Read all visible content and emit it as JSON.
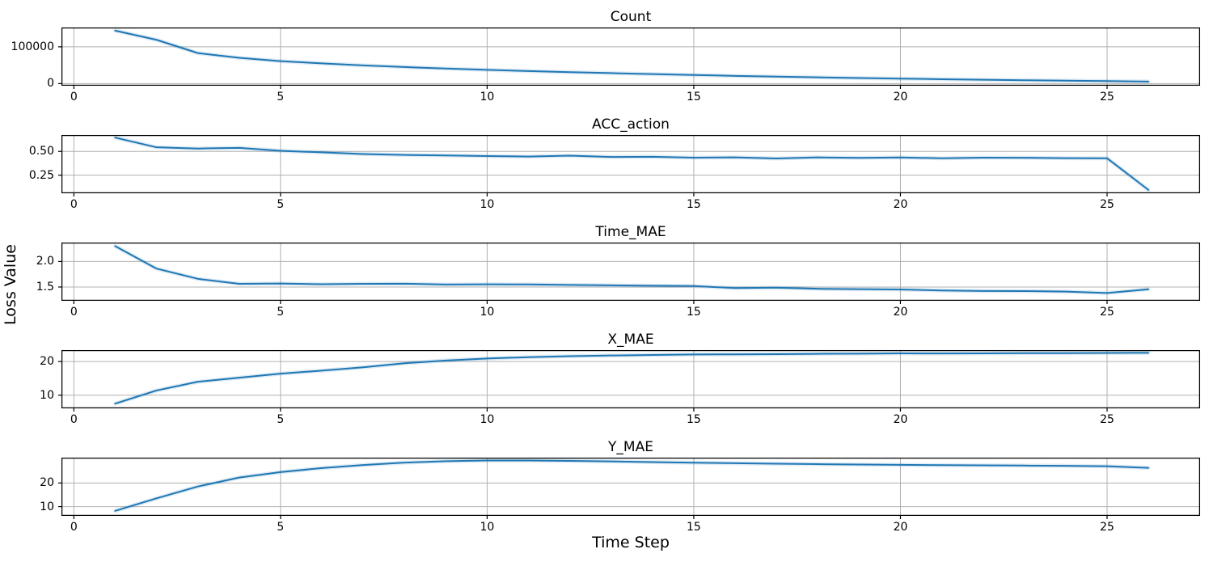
{
  "figure": {
    "xlabel": "Time Step",
    "ylabel": "Loss Value",
    "background": "#ffffff"
  },
  "chart_data": {
    "type": "line",
    "grid": true,
    "legend": "none",
    "line_color": "#1f77b4",
    "band_color": "rgba(31,119,180,0.15)",
    "grid_color": "#b0b0b0",
    "spine_color": "#000000",
    "xlabel": "Time Step",
    "ylabel": "Loss Value",
    "x": [
      1,
      2,
      3,
      4,
      5,
      6,
      7,
      8,
      9,
      10,
      11,
      12,
      13,
      14,
      15,
      16,
      17,
      18,
      19,
      20,
      21,
      22,
      23,
      24,
      25,
      26
    ],
    "xlim": [
      -0.3,
      27.25
    ],
    "x_ticks": [
      0,
      5,
      10,
      15,
      20,
      25
    ],
    "x_tick_labels": [
      "0",
      "5",
      "10",
      "15",
      "20",
      "25"
    ],
    "charts": [
      {
        "title": "Count",
        "ylim": [
          -5700,
          152500
        ],
        "y_ticks": [
          0,
          100000
        ],
        "y_tick_labels": [
          "0",
          "100000"
        ],
        "values": [
          144000,
          119000,
          83000,
          70000,
          61000,
          55000,
          49500,
          45000,
          41000,
          37500,
          34000,
          31000,
          28500,
          26000,
          23500,
          21000,
          19000,
          17000,
          15200,
          13500,
          12000,
          10500,
          9200,
          8000,
          6800,
          5500
        ]
      },
      {
        "title": "ACC_action",
        "ylim": [
          0.06,
          0.672
        ],
        "y_ticks": [
          0.25,
          0.5
        ],
        "y_tick_labels": [
          "0.25",
          "0.50"
        ],
        "values": [
          0.645,
          0.543,
          0.53,
          0.537,
          0.506,
          0.49,
          0.472,
          0.463,
          0.457,
          0.451,
          0.446,
          0.455,
          0.441,
          0.444,
          0.434,
          0.437,
          0.425,
          0.437,
          0.432,
          0.436,
          0.428,
          0.434,
          0.433,
          0.429,
          0.428,
          0.095
        ]
      },
      {
        "title": "Time_MAE",
        "ylim": [
          1.23,
          2.37
        ],
        "y_ticks": [
          1.5,
          2.0
        ],
        "y_tick_labels": [
          "1.5",
          "2.0"
        ],
        "values": [
          2.3,
          1.86,
          1.66,
          1.563,
          1.568,
          1.555,
          1.562,
          1.565,
          1.548,
          1.553,
          1.55,
          1.54,
          1.532,
          1.525,
          1.518,
          1.48,
          1.487,
          1.465,
          1.457,
          1.452,
          1.432,
          1.422,
          1.421,
          1.41,
          1.382,
          1.455
        ]
      },
      {
        "title": "X_MAE",
        "ylim": [
          6.1,
          23.4
        ],
        "y_ticks": [
          10,
          20
        ],
        "y_tick_labels": [
          "10",
          "20"
        ],
        "values": [
          7.5,
          11.4,
          14.0,
          15.2,
          16.4,
          17.3,
          18.3,
          19.5,
          20.3,
          20.9,
          21.3,
          21.6,
          21.8,
          21.95,
          22.1,
          22.15,
          22.2,
          22.3,
          22.35,
          22.45,
          22.4,
          22.45,
          22.5,
          22.5,
          22.55,
          22.6
        ]
      },
      {
        "title": "Y_MAE",
        "ylim": [
          6.1,
          30.7
        ],
        "y_ticks": [
          10,
          20
        ],
        "y_tick_labels": [
          "10",
          "20"
        ],
        "values": [
          8.2,
          13.5,
          18.5,
          22.3,
          24.6,
          26.3,
          27.6,
          28.6,
          29.2,
          29.5,
          29.5,
          29.35,
          29.1,
          28.8,
          28.55,
          28.35,
          28.15,
          27.95,
          27.8,
          27.65,
          27.55,
          27.45,
          27.35,
          27.25,
          27.05,
          26.4
        ]
      }
    ]
  }
}
